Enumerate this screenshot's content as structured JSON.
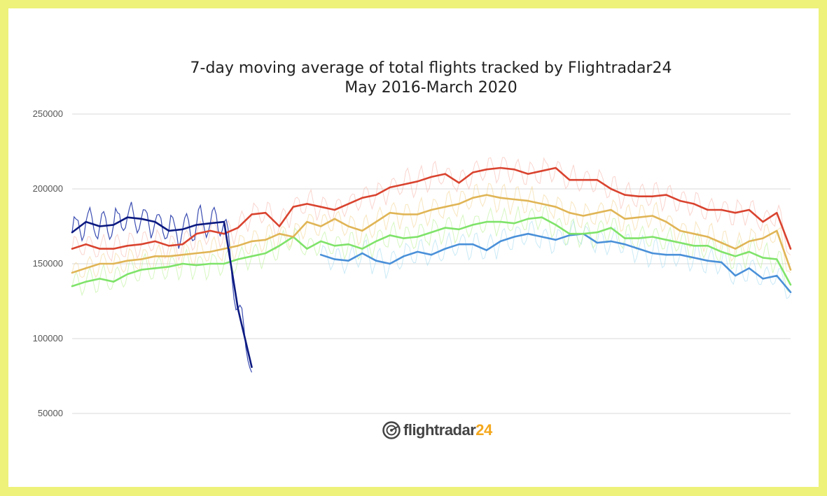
{
  "colors": {
    "background_border": "#eef27a",
    "grid": "#d8d8d8",
    "series_2016": "#9fd9ee",
    "series_2017": "#b4f08c",
    "series_2018": "#f2d28a",
    "series_2019": "#f6b3a8",
    "series_2020": "#263aa8",
    "avg_2016": "#4a90d9",
    "avg_2017": "#7fe36a",
    "avg_2018": "#e0b556",
    "avg_2019": "#d9432f",
    "avg_2020": "#0c1a80"
  },
  "logo": {
    "icon": "flightradar-radar-icon",
    "text_main": "flightradar",
    "text_num": "24"
  },
  "chart_data": {
    "type": "line",
    "title": "7-day moving average of total flights tracked by Flightradar24",
    "subtitle": "May 2016-March 2020",
    "xlabel": "",
    "ylabel": "",
    "ylim": [
      50000,
      250000
    ],
    "yticks": [
      "250000",
      "200000",
      "150000",
      "100000",
      "50000"
    ],
    "ytick_values": [
      250000,
      200000,
      150000,
      100000,
      50000
    ],
    "xlim": [
      1,
      53
    ],
    "x_axis": "week of year (no tick labels shown)",
    "grid": true,
    "legend": "none",
    "series": [
      {
        "key": "2016",
        "color_key": "avg_2016",
        "daily_color_key": "series_2016",
        "x": [
          19,
          20,
          21,
          22,
          23,
          24,
          25,
          26,
          27,
          28,
          29,
          30,
          31,
          32,
          33,
          34,
          35,
          36,
          37,
          38,
          39,
          40,
          41,
          42,
          43,
          44,
          45,
          46,
          47,
          48,
          49,
          50,
          51,
          52,
          53
        ],
        "values": [
          156000,
          153000,
          152000,
          157000,
          152000,
          150000,
          155000,
          158000,
          156000,
          160000,
          163000,
          163000,
          159000,
          165000,
          168000,
          170000,
          168000,
          166000,
          169000,
          170000,
          164000,
          165000,
          163000,
          160000,
          157000,
          156000,
          156000,
          154000,
          152000,
          151000,
          142000,
          147000,
          140000,
          142000,
          131000
        ]
      },
      {
        "key": "2017",
        "color_key": "avg_2017",
        "daily_color_key": "series_2017",
        "x": [
          1,
          2,
          3,
          4,
          5,
          6,
          7,
          8,
          9,
          10,
          11,
          12,
          13,
          14,
          15,
          16,
          17,
          18,
          19,
          20,
          21,
          22,
          23,
          24,
          25,
          26,
          27,
          28,
          29,
          30,
          31,
          32,
          33,
          34,
          35,
          36,
          37,
          38,
          39,
          40,
          41,
          42,
          43,
          44,
          45,
          46,
          47,
          48,
          49,
          50,
          51,
          52,
          53
        ],
        "values": [
          135000,
          138000,
          140000,
          138000,
          143000,
          146000,
          147000,
          148000,
          150000,
          149000,
          150000,
          150000,
          153000,
          155000,
          157000,
          162000,
          168000,
          160000,
          165000,
          162000,
          163000,
          160000,
          165000,
          169000,
          167000,
          168000,
          171000,
          174000,
          173000,
          176000,
          178000,
          178000,
          177000,
          180000,
          181000,
          176000,
          170000,
          170000,
          171000,
          174000,
          167000,
          167000,
          168000,
          166000,
          164000,
          162000,
          162000,
          158000,
          155000,
          158000,
          154000,
          153000,
          136000
        ]
      },
      {
        "key": "2018",
        "color_key": "avg_2018",
        "daily_color_key": "series_2018",
        "x": [
          1,
          2,
          3,
          4,
          5,
          6,
          7,
          8,
          9,
          10,
          11,
          12,
          13,
          14,
          15,
          16,
          17,
          18,
          19,
          20,
          21,
          22,
          23,
          24,
          25,
          26,
          27,
          28,
          29,
          30,
          31,
          32,
          33,
          34,
          35,
          36,
          37,
          38,
          39,
          40,
          41,
          42,
          43,
          44,
          45,
          46,
          47,
          48,
          49,
          50,
          51,
          52,
          53
        ],
        "values": [
          144000,
          147000,
          150000,
          150000,
          152000,
          153000,
          155000,
          155000,
          156000,
          157000,
          158000,
          160000,
          162000,
          165000,
          166000,
          170000,
          168000,
          178000,
          175000,
          180000,
          175000,
          172000,
          178000,
          184000,
          183000,
          183000,
          186000,
          188000,
          190000,
          194000,
          196000,
          194000,
          193000,
          192000,
          190000,
          188000,
          184000,
          182000,
          184000,
          186000,
          180000,
          181000,
          182000,
          178000,
          172000,
          170000,
          168000,
          164000,
          160000,
          165000,
          167000,
          172000,
          146000
        ]
      },
      {
        "key": "2019",
        "color_key": "avg_2019",
        "daily_color_key": "series_2019",
        "x": [
          1,
          2,
          3,
          4,
          5,
          6,
          7,
          8,
          9,
          10,
          11,
          12,
          13,
          14,
          15,
          16,
          17,
          18,
          19,
          20,
          21,
          22,
          23,
          24,
          25,
          26,
          27,
          28,
          29,
          30,
          31,
          32,
          33,
          34,
          35,
          36,
          37,
          38,
          39,
          40,
          41,
          42,
          43,
          44,
          45,
          46,
          47,
          48,
          49,
          50,
          51,
          52,
          53
        ],
        "values": [
          160000,
          163000,
          160000,
          160000,
          162000,
          163000,
          165000,
          162000,
          163000,
          170000,
          172000,
          170000,
          174000,
          183000,
          184000,
          175000,
          188000,
          190000,
          188000,
          186000,
          190000,
          194000,
          196000,
          201000,
          203000,
          205000,
          208000,
          210000,
          204000,
          211000,
          213000,
          214000,
          213000,
          210000,
          212000,
          214000,
          206000,
          206000,
          206000,
          200000,
          196000,
          195000,
          195000,
          196000,
          192000,
          190000,
          186000,
          186000,
          184000,
          186000,
          178000,
          184000,
          160000
        ]
      },
      {
        "key": "2020",
        "color_key": "avg_2020",
        "daily_color_key": "series_2020",
        "x": [
          1,
          2,
          3,
          4,
          5,
          6,
          7,
          8,
          9,
          10,
          11,
          12,
          13,
          14
        ],
        "values": [
          171000,
          178000,
          175000,
          176000,
          181000,
          180000,
          178000,
          172000,
          173000,
          176000,
          177000,
          178000,
          120000,
          81000
        ]
      }
    ]
  }
}
